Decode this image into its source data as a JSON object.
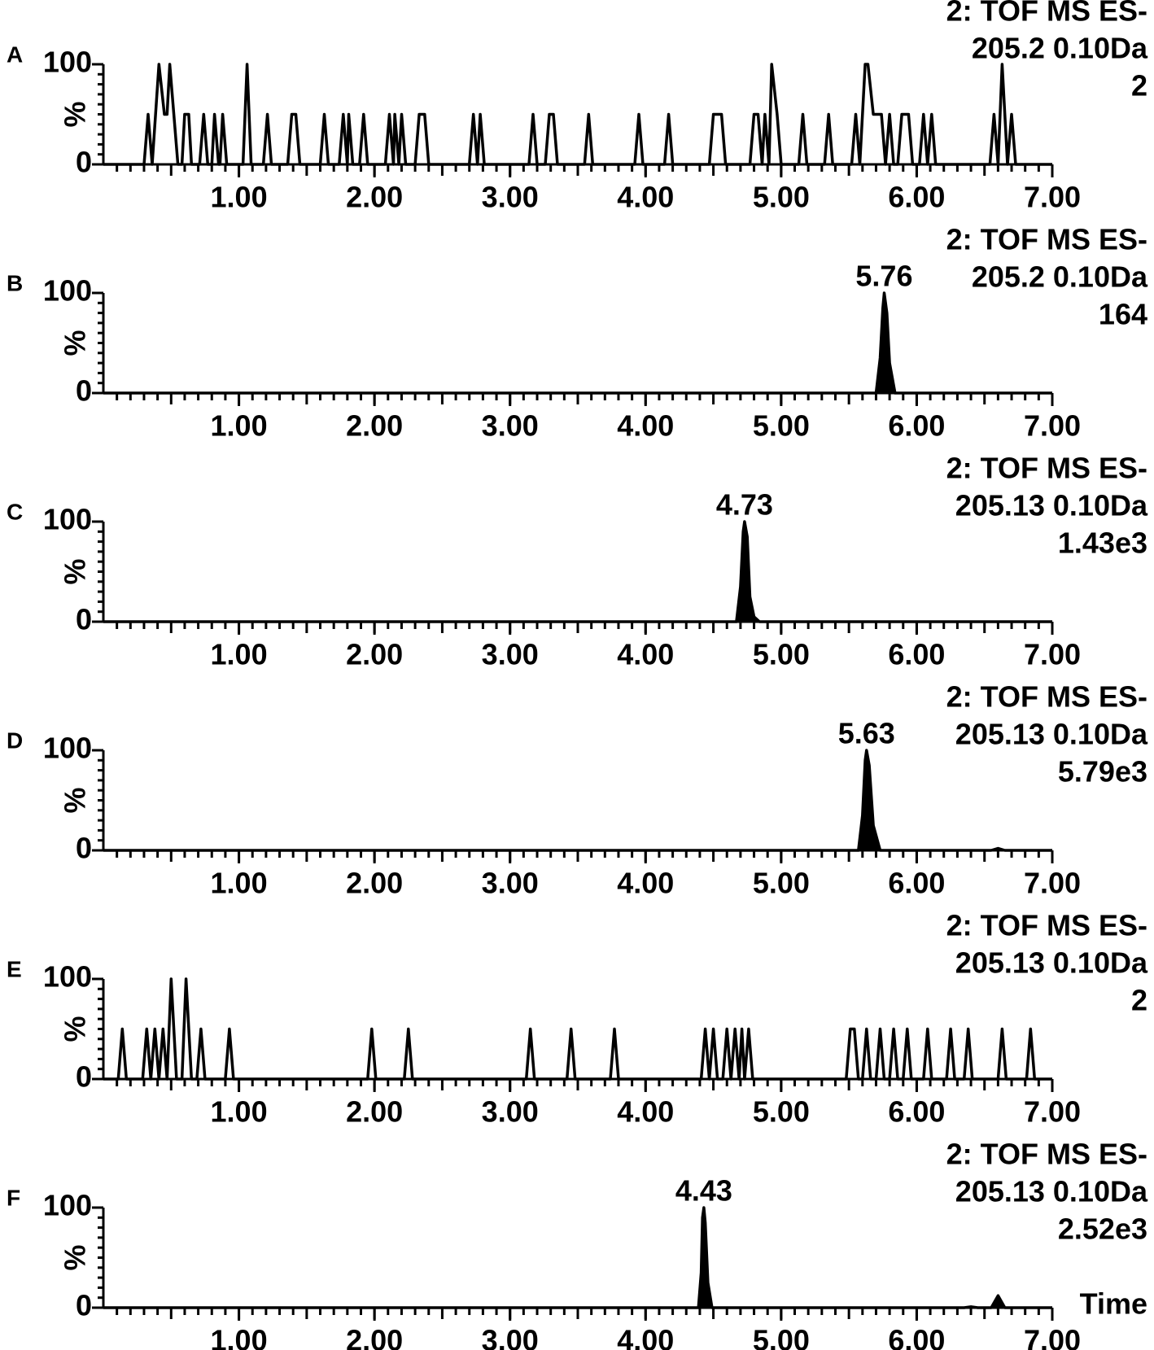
{
  "chart_data": [
    {
      "type": "line",
      "panel": "A",
      "header": [
        "2: TOF MS ES-",
        "205.2 0.10Da",
        "2"
      ],
      "fill": false,
      "color": "#000000",
      "x": [
        0,
        0.3,
        0.33,
        0.36,
        0.41,
        0.45,
        0.47,
        0.49,
        0.55,
        0.58,
        0.6,
        0.63,
        0.65,
        0.71,
        0.74,
        0.77,
        0.8,
        0.82,
        0.85,
        0.86,
        0.88,
        0.91,
        1.03,
        1.06,
        1.09,
        1.18,
        1.21,
        1.24,
        1.36,
        1.39,
        1.42,
        1.45,
        1.6,
        1.63,
        1.66,
        1.74,
        1.77,
        1.8,
        1.81,
        1.84,
        1.89,
        1.92,
        1.95,
        2.08,
        2.11,
        2.14,
        2.15,
        2.18,
        2.2,
        2.23,
        2.3,
        2.33,
        2.37,
        2.4,
        2.7,
        2.73,
        2.76,
        2.78,
        2.81,
        3.14,
        3.17,
        3.2,
        3.26,
        3.29,
        3.32,
        3.35,
        3.55,
        3.58,
        3.61,
        3.92,
        3.95,
        3.98,
        4.14,
        4.17,
        4.2,
        4.47,
        4.5,
        4.56,
        4.59,
        4.77,
        4.8,
        4.83,
        4.86,
        4.88,
        4.91,
        4.93,
        4.97,
        5.0,
        5.13,
        5.16,
        5.19,
        5.32,
        5.35,
        5.38,
        5.52,
        5.55,
        5.58,
        5.62,
        5.64,
        5.68,
        5.74,
        5.77,
        5.8,
        5.83,
        5.86,
        5.89,
        5.94,
        5.97,
        6.02,
        6.05,
        6.08,
        6.11,
        6.14,
        6.54,
        6.57,
        6.6,
        6.63,
        6.67,
        6.7,
        6.73,
        7.0
      ],
      "values": [
        0,
        0,
        50,
        0,
        100,
        50,
        50,
        100,
        0,
        0,
        50,
        50,
        0,
        0,
        50,
        0,
        0,
        50,
        0,
        0,
        50,
        0,
        0,
        100,
        0,
        0,
        50,
        0,
        0,
        50,
        50,
        0,
        0,
        50,
        0,
        0,
        50,
        0,
        50,
        0,
        0,
        50,
        0,
        0,
        50,
        0,
        50,
        0,
        50,
        0,
        0,
        50,
        50,
        0,
        0,
        50,
        0,
        50,
        0,
        0,
        50,
        0,
        0,
        50,
        50,
        0,
        0,
        50,
        0,
        0,
        50,
        0,
        0,
        50,
        0,
        0,
        50,
        50,
        0,
        0,
        50,
        50,
        0,
        50,
        0,
        100,
        50,
        0,
        0,
        50,
        0,
        0,
        50,
        0,
        0,
        50,
        0,
        100,
        100,
        50,
        50,
        0,
        50,
        0,
        0,
        50,
        50,
        0,
        0,
        50,
        0,
        50,
        0,
        0,
        50,
        0,
        100,
        0,
        50,
        0,
        0
      ],
      "xlim": [
        0,
        7
      ],
      "ylim": [
        0,
        100
      ],
      "yticks": [
        0,
        100
      ],
      "ylabel": "%",
      "xticks": [
        {
          "value": 1,
          "label": "1.00"
        },
        {
          "value": 2,
          "label": "2.00"
        },
        {
          "value": 3,
          "label": "3.00"
        },
        {
          "value": 4,
          "label": "4.00"
        },
        {
          "value": 5,
          "label": "5.00"
        },
        {
          "value": 6,
          "label": "6.00"
        },
        {
          "value": 7,
          "label": "7.00"
        }
      ]
    },
    {
      "type": "line",
      "panel": "B",
      "header": [
        "2: TOF MS ES-",
        "205.2 0.10Da",
        "164"
      ],
      "fill": true,
      "color": "#000000",
      "annotations": [
        {
          "x": 5.76,
          "text": "5.76"
        }
      ],
      "x": [
        0,
        5.7,
        5.73,
        5.75,
        5.76,
        5.78,
        5.8,
        5.84,
        7.0
      ],
      "values": [
        0,
        0,
        35,
        85,
        100,
        80,
        30,
        0,
        0
      ],
      "xlim": [
        0,
        7
      ],
      "ylim": [
        0,
        100
      ],
      "yticks": [
        0,
        100
      ],
      "ylabel": "%",
      "xticks": [
        {
          "value": 1,
          "label": "1.00"
        },
        {
          "value": 2,
          "label": "2.00"
        },
        {
          "value": 3,
          "label": "3.00"
        },
        {
          "value": 4,
          "label": "4.00"
        },
        {
          "value": 5,
          "label": "5.00"
        },
        {
          "value": 6,
          "label": "6.00"
        },
        {
          "value": 7,
          "label": "7.00"
        }
      ]
    },
    {
      "type": "line",
      "panel": "C",
      "header": [
        "2: TOF MS ES-",
        "205.13 0.10Da",
        "1.43e3"
      ],
      "fill": true,
      "color": "#000000",
      "annotations": [
        {
          "x": 4.73,
          "text": "4.73"
        }
      ],
      "x": [
        0,
        4.67,
        4.7,
        4.72,
        4.73,
        4.75,
        4.77,
        4.8,
        4.84,
        7.0
      ],
      "values": [
        0,
        0,
        35,
        90,
        100,
        85,
        25,
        5,
        0,
        0
      ],
      "xlim": [
        0,
        7
      ],
      "ylim": [
        0,
        100
      ],
      "yticks": [
        0,
        100
      ],
      "ylabel": "%",
      "xticks": [
        {
          "value": 1,
          "label": "1.00"
        },
        {
          "value": 2,
          "label": "2.00"
        },
        {
          "value": 3,
          "label": "3.00"
        },
        {
          "value": 4,
          "label": "4.00"
        },
        {
          "value": 5,
          "label": "5.00"
        },
        {
          "value": 6,
          "label": "6.00"
        },
        {
          "value": 7,
          "label": "7.00"
        }
      ]
    },
    {
      "type": "line",
      "panel": "D",
      "header": [
        "2: TOF MS ES-",
        "205.13 0.10Da",
        "5.79e3"
      ],
      "fill": true,
      "color": "#000000",
      "annotations": [
        {
          "x": 5.63,
          "text": "5.63"
        }
      ],
      "x": [
        0,
        5.57,
        5.6,
        5.62,
        5.63,
        5.65,
        5.68,
        5.73,
        6.55,
        6.6,
        6.65,
        7.0
      ],
      "values": [
        0,
        0,
        35,
        90,
        100,
        85,
        25,
        0,
        0,
        2,
        0,
        0
      ],
      "xlim": [
        0,
        7
      ],
      "ylim": [
        0,
        100
      ],
      "yticks": [
        0,
        100
      ],
      "ylabel": "%",
      "xticks": [
        {
          "value": 1,
          "label": "1.00"
        },
        {
          "value": 2,
          "label": "2.00"
        },
        {
          "value": 3,
          "label": "3.00"
        },
        {
          "value": 4,
          "label": "4.00"
        },
        {
          "value": 5,
          "label": "5.00"
        },
        {
          "value": 6,
          "label": "6.00"
        },
        {
          "value": 7,
          "label": "7.00"
        }
      ]
    },
    {
      "type": "line",
      "panel": "E",
      "header": [
        "2: TOF MS ES-",
        "205.13 0.10Da",
        "2"
      ],
      "fill": false,
      "color": "#000000",
      "x": [
        0,
        0.11,
        0.14,
        0.17,
        0.29,
        0.32,
        0.35,
        0.38,
        0.41,
        0.44,
        0.47,
        0.5,
        0.54,
        0.58,
        0.61,
        0.65,
        0.69,
        0.72,
        0.75,
        0.9,
        0.93,
        0.96,
        1.95,
        1.98,
        2.01,
        2.22,
        2.25,
        2.28,
        3.12,
        3.15,
        3.18,
        3.42,
        3.45,
        3.48,
        3.74,
        3.77,
        3.8,
        4.41,
        4.44,
        4.47,
        4.5,
        4.53,
        4.57,
        4.6,
        4.63,
        4.66,
        4.69,
        4.71,
        4.73,
        4.76,
        4.79,
        5.48,
        5.51,
        5.54,
        5.57,
        5.6,
        5.63,
        5.66,
        5.7,
        5.73,
        5.76,
        5.8,
        5.83,
        5.86,
        5.9,
        5.93,
        5.96,
        6.05,
        6.08,
        6.11,
        6.22,
        6.25,
        6.28,
        6.35,
        6.38,
        6.41,
        6.6,
        6.63,
        6.66,
        6.81,
        6.84,
        6.87,
        7.0
      ],
      "values": [
        0,
        0,
        50,
        0,
        0,
        50,
        0,
        50,
        0,
        50,
        0,
        100,
        0,
        0,
        100,
        0,
        0,
        50,
        0,
        0,
        50,
        0,
        0,
        50,
        0,
        0,
        50,
        0,
        0,
        50,
        0,
        0,
        50,
        0,
        0,
        50,
        0,
        0,
        50,
        0,
        50,
        0,
        0,
        50,
        0,
        50,
        0,
        50,
        0,
        50,
        0,
        0,
        50,
        50,
        0,
        0,
        50,
        0,
        0,
        50,
        0,
        0,
        50,
        0,
        0,
        50,
        0,
        0,
        50,
        0,
        0,
        50,
        0,
        0,
        50,
        0,
        0,
        50,
        0,
        0,
        50,
        0,
        0
      ],
      "xlim": [
        0,
        7
      ],
      "ylim": [
        0,
        100
      ],
      "yticks": [
        0,
        100
      ],
      "ylabel": "%",
      "xticks": [
        {
          "value": 1,
          "label": "1.00"
        },
        {
          "value": 2,
          "label": "2.00"
        },
        {
          "value": 3,
          "label": "3.00"
        },
        {
          "value": 4,
          "label": "4.00"
        },
        {
          "value": 5,
          "label": "5.00"
        },
        {
          "value": 6,
          "label": "6.00"
        },
        {
          "value": 7,
          "label": "7.00"
        }
      ]
    },
    {
      "type": "line",
      "panel": "F",
      "header": [
        "2: TOF MS ES-",
        "205.13 0.10Da",
        "2.52e3"
      ],
      "fill": true,
      "color": "#000000",
      "annotations": [
        {
          "x": 4.43,
          "text": "4.43"
        }
      ],
      "xlabel": "Time",
      "x": [
        0,
        4.39,
        4.41,
        4.42,
        4.43,
        4.44,
        4.46,
        4.49,
        6.35,
        6.4,
        6.45,
        6.55,
        6.6,
        6.65,
        7.0
      ],
      "values": [
        0,
        0,
        35,
        90,
        100,
        85,
        25,
        0,
        0,
        1,
        0,
        0,
        12,
        0,
        0
      ],
      "xlim": [
        0,
        7
      ],
      "ylim": [
        0,
        100
      ],
      "yticks": [
        0,
        100
      ],
      "ylabel": "%",
      "xticks": [
        {
          "value": 1,
          "label": "1.00"
        },
        {
          "value": 2,
          "label": "2.00"
        },
        {
          "value": 3,
          "label": "3.00"
        },
        {
          "value": 4,
          "label": "4.00"
        },
        {
          "value": 5,
          "label": "5.00"
        },
        {
          "value": 6,
          "label": "6.00"
        },
        {
          "value": 7,
          "label": "7.00"
        }
      ]
    }
  ]
}
